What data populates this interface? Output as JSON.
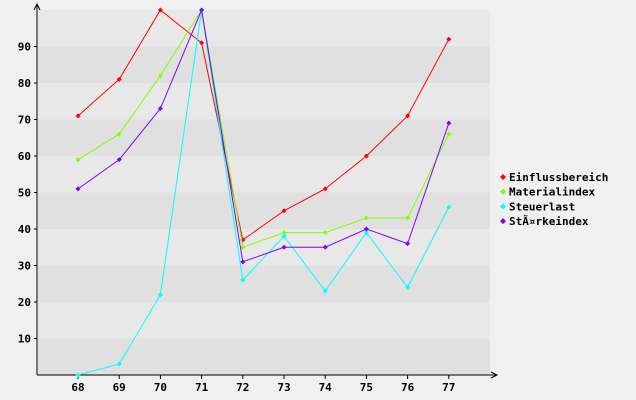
{
  "chart_data": {
    "type": "line",
    "title": "",
    "xlabel": "",
    "ylabel": "",
    "categories": [
      "68",
      "69",
      "70",
      "71",
      "72",
      "73",
      "74",
      "75",
      "76",
      "77"
    ],
    "ylim": [
      0,
      100
    ],
    "yticks": [
      10,
      20,
      30,
      40,
      50,
      60,
      70,
      80,
      90
    ],
    "grid": "horizontal bands",
    "legend_position": "right",
    "series": [
      {
        "name": "Einflussbereich",
        "color": "#ff0000",
        "values": [
          71,
          81,
          100,
          91,
          37,
          45,
          51,
          60,
          71,
          92
        ]
      },
      {
        "name": "Materialindex",
        "color": "#80ff00",
        "values": [
          59,
          66,
          82,
          100,
          35,
          39,
          39,
          43,
          43,
          66
        ]
      },
      {
        "name": "Steuerlast",
        "color": "#00ffff",
        "values": [
          0,
          3,
          22,
          100,
          26,
          38,
          23,
          39,
          24,
          46
        ]
      },
      {
        "name": "StÃ¤rkeindex",
        "color": "#8000ff",
        "values": [
          51,
          59,
          73,
          100,
          31,
          35,
          35,
          40,
          36,
          69
        ]
      }
    ]
  }
}
